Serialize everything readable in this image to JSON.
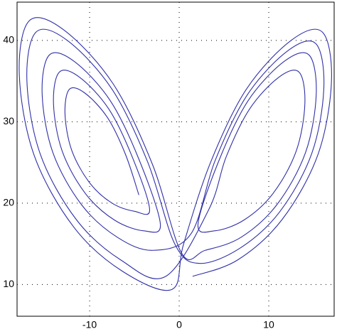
{
  "chart_data": {
    "type": "line",
    "x": [
      -4.5,
      -6,
      -8,
      -10.5,
      -12.25,
      -12.75,
      -12,
      -10,
      -7.5,
      -5,
      -3.3,
      -5.25,
      -7.85,
      -11.1,
      -13.38,
      -14.03,
      -13.05,
      -10.45,
      -7.2,
      -3.95,
      -2.1,
      -4.5,
      -7.7,
      -11.7,
      -14.5,
      -15.3,
      -14.1,
      -10.9,
      -6.9,
      -2.9,
      1.3,
      4,
      7.6,
      12.1,
      15.25,
      16.15,
      14.8,
      11.2,
      6.7,
      2.2,
      -0.5,
      -3.5,
      -7.5,
      -12.5,
      -16,
      -17,
      -15.5,
      -11.5,
      -6.5,
      -1.5,
      3.3,
      5.25,
      7.85,
      11.1,
      13.38,
      14.03,
      13.05,
      10.45,
      7.2,
      3.95,
      2.1,
      4.5,
      7.7,
      11.7,
      14.5,
      15.3,
      14.1,
      10.9,
      6.9,
      2.9,
      0.3,
      -3,
      -7.4,
      -12.9,
      -16.75,
      -17.85,
      -16.2,
      -11.8,
      -6.3,
      -0.8,
      0.5,
      3.5,
      7.5,
      12.5,
      16,
      17,
      15.5,
      11.5,
      6.5,
      1.5
    ],
    "values": [
      21,
      26,
      30.5,
      33.5,
      34,
      31,
      26.5,
      22.5,
      20,
      19,
      19.2,
      25.7,
      31.55,
      35.45,
      36.1,
      32.2,
      26.35,
      21.15,
      17.9,
      16.6,
      17.4,
      25.4,
      32.6,
      37.4,
      38.2,
      33.4,
      26.2,
      19.8,
      15.8,
      14.2,
      16.2,
      25.2,
      33.3,
      38.7,
      39.6,
      34.2,
      26.1,
      18.9,
      14.4,
      12.6,
      15,
      25,
      34,
      40,
      41,
      35,
      26,
      18,
      13,
      11,
      19.2,
      25.7,
      31.55,
      35.45,
      36.1,
      32.2,
      26.35,
      21.15,
      17.9,
      16.6,
      17.4,
      25.4,
      32.6,
      37.4,
      38.2,
      33.4,
      26.2,
      19.8,
      15.8,
      14.2,
      13.8,
      24.8,
      34.7,
      41.3,
      42.4,
      35.8,
      25.9,
      17.1,
      11.6,
      9.4,
      15,
      25,
      34,
      40,
      41,
      35,
      26,
      18,
      13,
      11
    ],
    "color": "#2f2fa8",
    "xlim": [
      -18.1,
      17.3
    ],
    "ylim": [
      6.1,
      44.7
    ],
    "xticks": [
      -10,
      0,
      10
    ],
    "yticks": [
      10,
      20,
      30,
      40
    ],
    "grid": true
  }
}
